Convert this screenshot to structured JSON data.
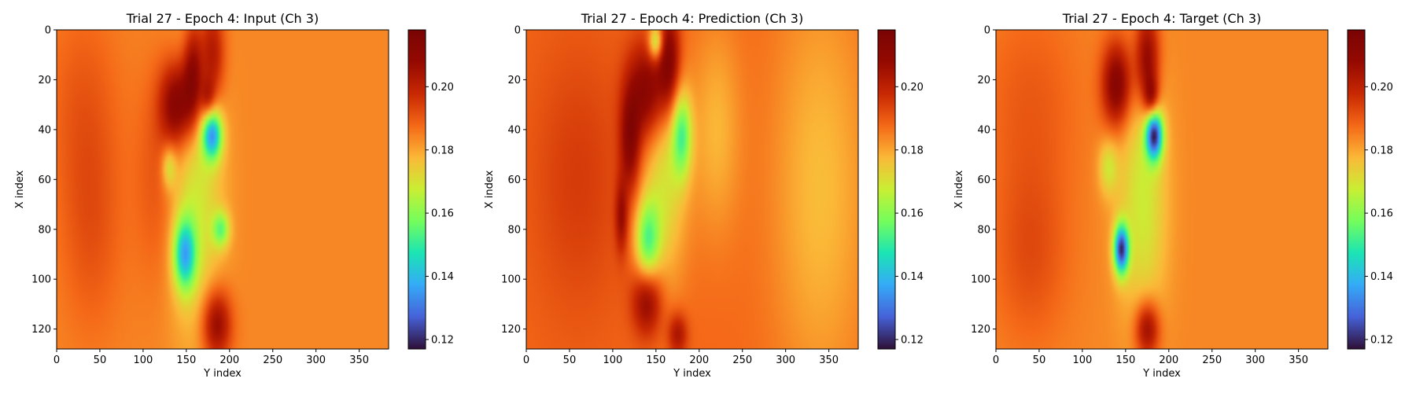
{
  "chart_data": [
    {
      "type": "heatmap",
      "title": "Trial 27 - Epoch 4: Input (Ch 3)",
      "xlabel": "Y index",
      "ylabel": "X index",
      "xlim": [
        0,
        384
      ],
      "ylim": [
        128,
        0
      ],
      "x_ticks": [
        0,
        50,
        100,
        150,
        200,
        250,
        300,
        350
      ],
      "y_ticks": [
        0,
        20,
        40,
        60,
        80,
        100,
        120
      ],
      "colormap": "turbo",
      "colorbar": {
        "range": [
          0.117,
          0.218
        ],
        "ticks": [
          0.12,
          0.14,
          0.16,
          0.18,
          0.2
        ],
        "tick_labels": [
          "0.12",
          "0.14",
          "0.16",
          "0.18",
          "0.20"
        ]
      },
      "background_value": 0.184,
      "features": [
        {
          "kind": "high",
          "x": 140,
          "y": 30,
          "sx": 14,
          "sy": 12,
          "value": 0.215
        },
        {
          "kind": "high",
          "x": 158,
          "y": 18,
          "sx": 8,
          "sy": 14,
          "value": 0.21
        },
        {
          "kind": "high",
          "x": 180,
          "y": 10,
          "sx": 10,
          "sy": 14,
          "value": 0.205
        },
        {
          "kind": "high",
          "x": 175,
          "y": 28,
          "sx": 6,
          "sy": 6,
          "value": 0.2
        },
        {
          "kind": "high",
          "x": 185,
          "y": 118,
          "sx": 12,
          "sy": 10,
          "value": 0.21
        },
        {
          "kind": "high",
          "x": 120,
          "y": 60,
          "sx": 20,
          "sy": 30,
          "value": 0.192
        },
        {
          "kind": "low",
          "x": 180,
          "y": 42,
          "sx": 8,
          "sy": 7,
          "value": 0.14
        },
        {
          "kind": "low",
          "x": 148,
          "y": 90,
          "sx": 9,
          "sy": 10,
          "value": 0.145
        },
        {
          "kind": "low",
          "x": 160,
          "y": 68,
          "sx": 22,
          "sy": 38,
          "value": 0.168
        },
        {
          "kind": "low",
          "x": 190,
          "y": 80,
          "sx": 7,
          "sy": 5,
          "value": 0.16
        },
        {
          "kind": "low",
          "x": 130,
          "y": 55,
          "sx": 6,
          "sy": 6,
          "value": 0.168
        },
        {
          "kind": "high",
          "x": 30,
          "y": 30,
          "sx": 30,
          "sy": 30,
          "value": 0.19
        },
        {
          "kind": "high",
          "x": 40,
          "y": 80,
          "sx": 25,
          "sy": 30,
          "value": 0.191
        }
      ]
    },
    {
      "type": "heatmap",
      "title": "Trial 27 - Epoch 4: Prediction (Ch 3)",
      "xlabel": "Y index",
      "ylabel": "X index",
      "xlim": [
        0,
        384
      ],
      "ylim": [
        128,
        0
      ],
      "x_ticks": [
        0,
        50,
        100,
        150,
        200,
        250,
        300,
        350
      ],
      "y_ticks": [
        0,
        20,
        40,
        60,
        80,
        100,
        120
      ],
      "colormap": "turbo",
      "colorbar": {
        "range": [
          0.117,
          0.218
        ],
        "ticks": [
          0.12,
          0.14,
          0.16,
          0.18,
          0.2
        ],
        "tick_labels": [
          "0.12",
          "0.14",
          "0.16",
          "0.18",
          "0.20"
        ]
      },
      "background_value": 0.188,
      "features": [
        {
          "kind": "high",
          "x": 140,
          "y": 25,
          "sx": 16,
          "sy": 14,
          "value": 0.215
        },
        {
          "kind": "high",
          "x": 165,
          "y": 12,
          "sx": 9,
          "sy": 14,
          "value": 0.215
        },
        {
          "kind": "high",
          "x": 120,
          "y": 45,
          "sx": 8,
          "sy": 14,
          "value": 0.21
        },
        {
          "kind": "high",
          "x": 110,
          "y": 75,
          "sx": 5,
          "sy": 10,
          "value": 0.205
        },
        {
          "kind": "high",
          "x": 140,
          "y": 108,
          "sx": 12,
          "sy": 10,
          "value": 0.212
        },
        {
          "kind": "high",
          "x": 175,
          "y": 122,
          "sx": 8,
          "sy": 6,
          "value": 0.205
        },
        {
          "kind": "high",
          "x": 60,
          "y": 60,
          "sx": 40,
          "sy": 40,
          "value": 0.195
        },
        {
          "kind": "low",
          "x": 180,
          "y": 42,
          "sx": 8,
          "sy": 12,
          "value": 0.16
        },
        {
          "kind": "low",
          "x": 140,
          "y": 85,
          "sx": 10,
          "sy": 12,
          "value": 0.158
        },
        {
          "kind": "low",
          "x": 150,
          "y": 5,
          "sx": 6,
          "sy": 5,
          "value": 0.16
        },
        {
          "kind": "low",
          "x": 160,
          "y": 60,
          "sx": 18,
          "sy": 30,
          "value": 0.17
        },
        {
          "kind": "low",
          "x": 340,
          "y": 64,
          "sx": 40,
          "sy": 60,
          "value": 0.177
        },
        {
          "kind": "low",
          "x": 220,
          "y": 40,
          "sx": 20,
          "sy": 30,
          "value": 0.178
        }
      ]
    },
    {
      "type": "heatmap",
      "title": "Trial 27 - Epoch 4: Target (Ch 3)",
      "xlabel": "Y index",
      "ylabel": "X index",
      "xlim": [
        0,
        384
      ],
      "ylim": [
        128,
        0
      ],
      "x_ticks": [
        0,
        50,
        100,
        150,
        200,
        250,
        300,
        350
      ],
      "y_ticks": [
        0,
        20,
        40,
        60,
        80,
        100,
        120
      ],
      "colormap": "turbo",
      "colorbar": {
        "range": [
          0.117,
          0.218
        ],
        "ticks": [
          0.12,
          0.14,
          0.16,
          0.18,
          0.2
        ],
        "tick_labels": [
          "0.12",
          "0.14",
          "0.16",
          "0.18",
          "0.20"
        ]
      },
      "background_value": 0.184,
      "features": [
        {
          "kind": "high",
          "x": 140,
          "y": 22,
          "sx": 12,
          "sy": 12,
          "value": 0.215
        },
        {
          "kind": "high",
          "x": 175,
          "y": 12,
          "sx": 10,
          "sy": 14,
          "value": 0.212
        },
        {
          "kind": "high",
          "x": 180,
          "y": 28,
          "sx": 6,
          "sy": 6,
          "value": 0.205
        },
        {
          "kind": "high",
          "x": 175,
          "y": 120,
          "sx": 10,
          "sy": 8,
          "value": 0.21
        },
        {
          "kind": "high",
          "x": 40,
          "y": 30,
          "sx": 40,
          "sy": 30,
          "value": 0.19
        },
        {
          "kind": "high",
          "x": 40,
          "y": 90,
          "sx": 30,
          "sy": 25,
          "value": 0.192
        },
        {
          "kind": "low",
          "x": 183,
          "y": 42,
          "sx": 7,
          "sy": 7,
          "value": 0.125
        },
        {
          "kind": "low",
          "x": 145,
          "y": 88,
          "sx": 6,
          "sy": 7,
          "value": 0.125
        },
        {
          "kind": "low",
          "x": 170,
          "y": 68,
          "sx": 20,
          "sy": 36,
          "value": 0.168
        },
        {
          "kind": "low",
          "x": 130,
          "y": 55,
          "sx": 8,
          "sy": 8,
          "value": 0.17
        }
      ]
    }
  ]
}
